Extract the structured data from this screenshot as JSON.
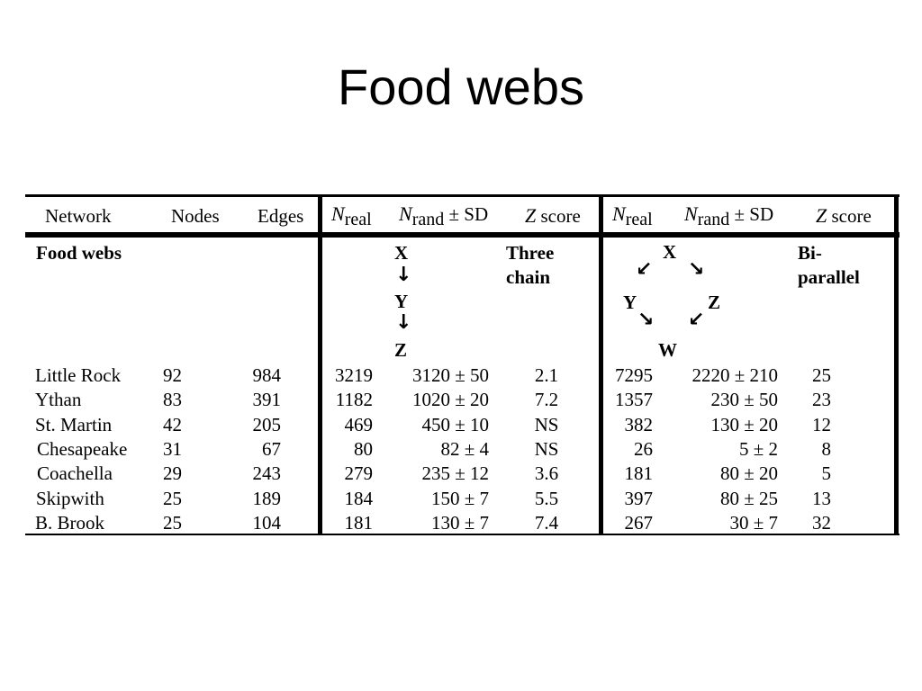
{
  "title": "Food webs",
  "headers": {
    "network": "Network",
    "nodes": "Nodes",
    "edges": "Edges",
    "n_real_a_var": "N",
    "n_real_a_sub": "real",
    "n_rand_a_var": "N",
    "n_rand_a_sub": "rand",
    "n_rand_a_suffix": "± SD",
    "z_a_var": "Z",
    "z_a_suffix": "score",
    "n_real_b_var": "N",
    "n_real_b_sub": "real",
    "n_rand_b_var": "N",
    "n_rand_b_sub": "rand",
    "n_rand_b_suffix": "± SD",
    "z_b_var": "Z",
    "z_b_suffix": "score"
  },
  "section_label": "Food webs",
  "motif_a": {
    "name_line1": "Three",
    "name_line2": "chain",
    "nodes": [
      "X",
      "Y",
      "Z"
    ],
    "arrow_glyph": "↓"
  },
  "motif_b": {
    "name_line1": "Bi-",
    "name_line2": "parallel",
    "nodes": [
      "X",
      "Y",
      "Z",
      "W"
    ],
    "arrow_down_left": "↙",
    "arrow_down_right": "↘"
  },
  "rows": [
    {
      "network": "Little Rock",
      "nodes": "92",
      "edges": "984",
      "real_a": "3219",
      "rand_a": "3120 ± 50",
      "z_a": "2.1",
      "real_b": "7295",
      "rand_b": "2220 ± 210",
      "z_b": "25"
    },
    {
      "network": "Ythan",
      "nodes": "83",
      "edges": "391",
      "real_a": "1182",
      "rand_a": "1020 ± 20",
      "z_a": "7.2",
      "real_b": "1357",
      "rand_b": "230 ± 50",
      "z_b": "23"
    },
    {
      "network": "St. Martin",
      "nodes": "42",
      "edges": "205",
      "real_a": "469",
      "rand_a": "450 ± 10",
      "z_a": "NS",
      "real_b": "382",
      "rand_b": "130 ± 20",
      "z_b": "12"
    },
    {
      "network": "Chesapeake",
      "nodes": "31",
      "edges": "67",
      "real_a": "80",
      "rand_a": "82 ± 4",
      "z_a": "NS",
      "real_b": "26",
      "rand_b": "5 ± 2",
      "z_b": "8"
    },
    {
      "network": "Coachella",
      "nodes": "29",
      "edges": "243",
      "real_a": "279",
      "rand_a": "235 ± 12",
      "z_a": "3.6",
      "real_b": "181",
      "rand_b": "80 ± 20",
      "z_b": "5"
    },
    {
      "network": "Skipwith",
      "nodes": "25",
      "edges": "189",
      "real_a": "184",
      "rand_a": "150 ± 7",
      "z_a": "5.5",
      "real_b": "397",
      "rand_b": "80 ± 25",
      "z_b": "13"
    },
    {
      "network": "B. Brook",
      "nodes": "25",
      "edges": "104",
      "real_a": "181",
      "rand_a": "130 ± 7",
      "z_a": "7.4",
      "real_b": "267",
      "rand_b": "30 ± 7",
      "z_b": "32"
    }
  ]
}
